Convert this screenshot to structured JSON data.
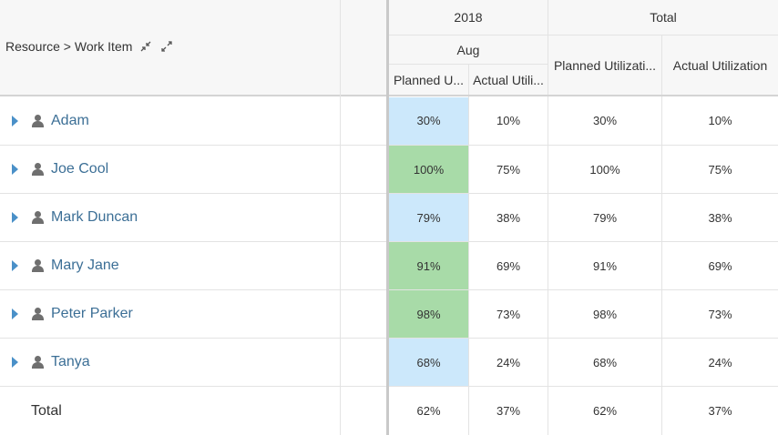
{
  "header": {
    "resource_label": "Resource > Work Item",
    "collapse_icon": "collapse-arrows-icon",
    "expand_icon": "expand-arrows-icon",
    "year": "2018",
    "total_group": "Total",
    "month": "Aug",
    "planned_short": "Planned U...",
    "actual_short": "Actual Utili...",
    "planned_total": "Planned Utilizati...",
    "actual_total": "Actual Utilization"
  },
  "colors": {
    "cell_green": "#a8dba8",
    "cell_blue": "#cce8fb",
    "name_link": "#3c6f96",
    "caret": "#4a90c8"
  },
  "rows": [
    {
      "name": "Adam",
      "aug_planned": "30%",
      "aug_actual": "10%",
      "total_planned": "30%",
      "total_actual": "10%",
      "level": "low"
    },
    {
      "name": "Joe Cool",
      "aug_planned": "100%",
      "aug_actual": "75%",
      "total_planned": "100%",
      "total_actual": "75%",
      "level": "high"
    },
    {
      "name": "Mark Duncan",
      "aug_planned": "79%",
      "aug_actual": "38%",
      "total_planned": "79%",
      "total_actual": "38%",
      "level": "low"
    },
    {
      "name": "Mary Jane",
      "aug_planned": "91%",
      "aug_actual": "69%",
      "total_planned": "91%",
      "total_actual": "69%",
      "level": "high"
    },
    {
      "name": "Peter Parker",
      "aug_planned": "98%",
      "aug_actual": "73%",
      "total_planned": "98%",
      "total_actual": "73%",
      "level": "high"
    },
    {
      "name": "Tanya",
      "aug_planned": "68%",
      "aug_actual": "24%",
      "total_planned": "68%",
      "total_actual": "24%",
      "level": "low"
    }
  ],
  "total_row": {
    "label": "Total",
    "aug_planned": "62%",
    "aug_actual": "37%",
    "total_planned": "62%",
    "total_actual": "37%"
  }
}
